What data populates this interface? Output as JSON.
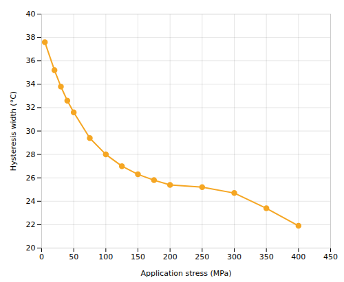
{
  "chart_data": {
    "type": "line",
    "x": [
      5,
      20,
      30,
      40,
      50,
      75,
      100,
      125,
      150,
      175,
      200,
      250,
      300,
      350,
      400
    ],
    "values": [
      37.6,
      35.2,
      33.8,
      32.6,
      31.6,
      29.4,
      28.0,
      27.0,
      26.3,
      25.8,
      25.4,
      25.2,
      24.7,
      23.4,
      21.9
    ],
    "color": "#F5A623",
    "marker": "o",
    "xlabel": "Application stress (MPa)",
    "ylabel": "Hysteresis width (°C)",
    "xlim": [
      0,
      450
    ],
    "ylim": [
      20,
      40
    ],
    "xticks": [
      0,
      50,
      100,
      150,
      200,
      250,
      300,
      350,
      400,
      450
    ],
    "yticks": [
      20,
      22,
      24,
      26,
      28,
      30,
      32,
      34,
      36,
      38,
      40
    ],
    "grid": true
  }
}
